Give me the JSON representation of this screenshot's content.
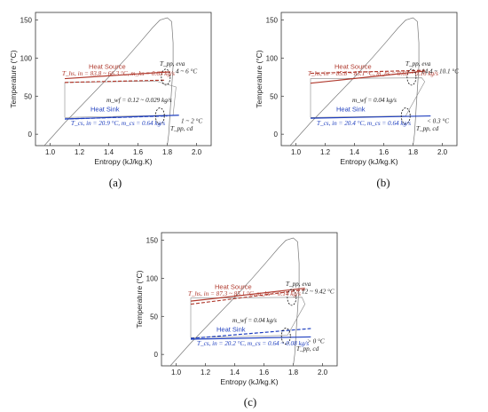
{
  "panels": [
    {
      "caption": "(a)",
      "source_label": "Heat Source",
      "source_text": "T_hs, in = 83.8 ~ 66.3 °C, m_hs = 0.63 kg/s",
      "sink_label": "Heat Sink",
      "sink_text_1": "T_cs, in = 20.9 °C, m_cs = 0.64 kg/s",
      "wf_text": "m_wf = 0.12 ~ 0.029 kg/s",
      "pp_evap_label": "T_pp, eva",
      "pp_evap_value": "4 ~ 6 °C",
      "pp_cond_label": "T_pp, cd",
      "pp_cond_value": "1 ~ 2 °C"
    },
    {
      "caption": "(b)",
      "source_label": "Heat Source",
      "source_text": "T_hs, in = 85.8 ~ 83.1 °C, m_hs = 0.63 ~ 0.16 kg/s",
      "sink_label": "Heat Sink",
      "sink_text_1": "T_cs, in = 20.4 °C, m_cs = 0.64 kg/s",
      "wf_text": "m_wf = 0.04 kg/s",
      "pp_evap_label": "T_pp, eva",
      "pp_evap_value": "14.4 ~ 10.1 °C",
      "pp_cond_label": "T_pp, cd",
      "pp_cond_value": "< 0.3 °C"
    },
    {
      "caption": "(c)",
      "source_label": "Heat Source",
      "source_text": "T_hs, in = 87.3 ~ 85.1 °C, m_hs = 0.14 kg/s",
      "sink_label": "Heat Sink",
      "sink_text_1": "T_cs, in = 20.2 °C, m_cs = 0.64 ~ 0.08 kg/s",
      "wf_text": "m_wf = 0.04 kg/s",
      "pp_evap_label": "T_pp, eva",
      "pp_evap_value": "12 ~ 9.42 °C",
      "pp_cond_label": "T_pp, cd",
      "pp_cond_value": "> 0 °C"
    }
  ],
  "axes": {
    "xlabel": "Entropy (kJ/kg.K)",
    "ylabel": "Temperature (°C)",
    "x_ticks": [
      "1.0",
      "1.2",
      "1.4",
      "1.6",
      "1.8",
      "2.0"
    ],
    "y_ticks": [
      "0",
      "50",
      "100",
      "150"
    ],
    "xlim": [
      0.9,
      2.1
    ],
    "ylim": [
      -15,
      160
    ]
  },
  "colors": {
    "source": "#b03a2e",
    "sink": "#1f3fbf",
    "cycle": "#888888",
    "dome": "#777777"
  }
}
